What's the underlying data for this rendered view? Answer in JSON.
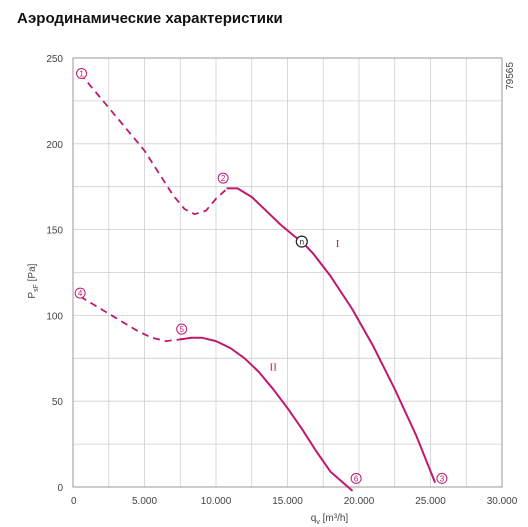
{
  "title": "Аэродинамические характеристики",
  "chart_data": {
    "type": "line",
    "code": "79565",
    "xlabel": "q_v [m³/h]",
    "xlabel_main": "q",
    "xlabel_sub": "v",
    "xlabel_unit": "[m³/h]",
    "ylabel": "P_sF [Pa]",
    "ylabel_main": "P",
    "ylabel_sub": "sF",
    "ylabel_unit": "[Pa]",
    "xlim": [
      0,
      30000
    ],
    "ylim": [
      0,
      250
    ],
    "xticks": [
      0,
      5000,
      10000,
      15000,
      20000,
      25000,
      30000
    ],
    "xtick_labels": [
      "0",
      "5.000",
      "10.000",
      "15.000",
      "20.000",
      "25.000",
      "30.000"
    ],
    "yticks": [
      0,
      50,
      100,
      150,
      200,
      250
    ],
    "ytick_labels": [
      "0",
      "50",
      "100",
      "150",
      "200",
      "250"
    ],
    "grid": true,
    "color": "#c0186e",
    "series": [
      {
        "name": "I",
        "dashed": [
          [
            500,
            241
          ],
          [
            2000,
            226
          ],
          [
            3500,
            211
          ],
          [
            5000,
            196
          ],
          [
            6000,
            183
          ],
          [
            7000,
            170
          ],
          [
            7800,
            162
          ],
          [
            8500,
            159
          ],
          [
            9300,
            161
          ],
          [
            10000,
            168
          ],
          [
            10800,
            174
          ]
        ],
        "solid": [
          [
            10800,
            174
          ],
          [
            11500,
            174
          ],
          [
            12500,
            169
          ],
          [
            13500,
            161
          ],
          [
            14500,
            153
          ],
          [
            15500,
            146
          ],
          [
            16000,
            143
          ],
          [
            16800,
            136
          ],
          [
            18000,
            123
          ],
          [
            19500,
            104
          ],
          [
            21000,
            82
          ],
          [
            22500,
            57
          ],
          [
            24000,
            30
          ],
          [
            25300,
            3
          ]
        ]
      },
      {
        "name": "II",
        "dashed": [
          [
            500,
            111
          ],
          [
            1500,
            106
          ],
          [
            2500,
            101
          ],
          [
            3500,
            96
          ],
          [
            4500,
            91
          ],
          [
            5500,
            87
          ],
          [
            6500,
            85
          ],
          [
            7500,
            86
          ],
          [
            8300,
            87
          ]
        ],
        "solid": [
          [
            7500,
            86
          ],
          [
            8300,
            87
          ],
          [
            9000,
            87
          ],
          [
            10000,
            85
          ],
          [
            11000,
            81
          ],
          [
            12000,
            75
          ],
          [
            13000,
            67
          ],
          [
            14000,
            57
          ],
          [
            15000,
            46
          ],
          [
            16000,
            34
          ],
          [
            17000,
            21
          ],
          [
            18000,
            9
          ],
          [
            19500,
            -2
          ]
        ]
      }
    ],
    "markers": [
      {
        "label": "1",
        "x": 600,
        "y": 241
      },
      {
        "label": "2",
        "x": 10500,
        "y": 180
      },
      {
        "label": "3",
        "x": 25800,
        "y": 5
      },
      {
        "label": "4",
        "x": 500,
        "y": 113
      },
      {
        "label": "5",
        "x": 7600,
        "y": 92
      },
      {
        "label": "6",
        "x": 19800,
        "y": 5
      }
    ],
    "operating_point": {
      "label": "n",
      "x": 16000,
      "y": 143
    },
    "annotations": [
      {
        "text": "I",
        "x": 18500,
        "y": 140
      },
      {
        "text": "II",
        "x": 14000,
        "y": 68
      }
    ]
  }
}
